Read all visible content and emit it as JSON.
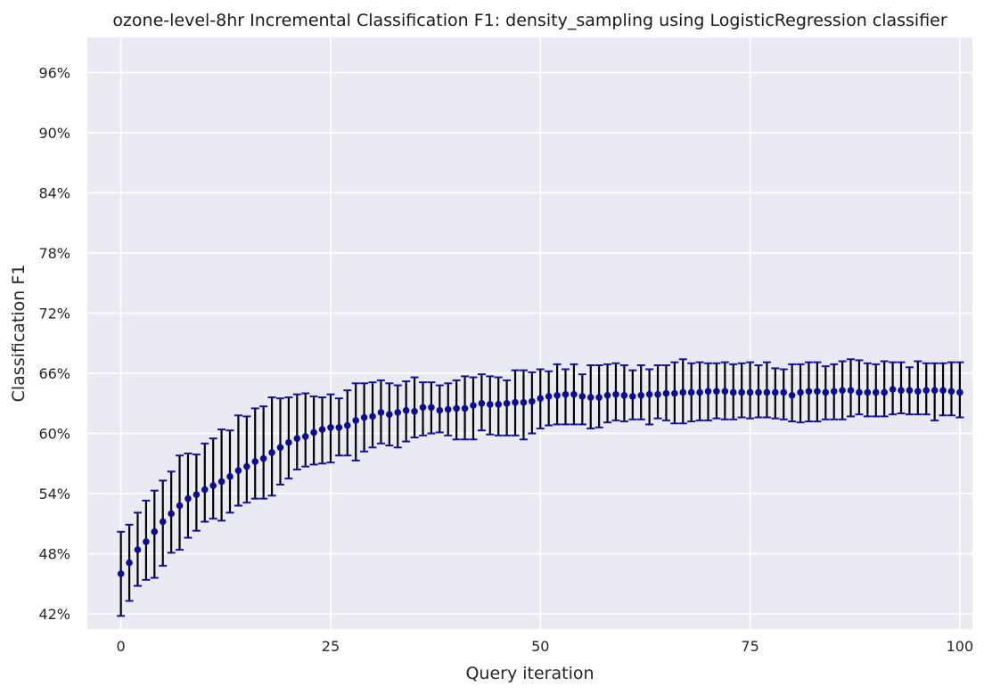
{
  "chart_data": {
    "type": "scatter",
    "title": "ozone-level-8hr Incremental Classification F1: density_sampling using LogisticRegression classifier",
    "xlabel": "Query iteration",
    "ylabel": "Classification F1",
    "xlim": [
      -4,
      101.5
    ],
    "ylim": [
      40.5,
      99.5
    ],
    "xticks": [
      0,
      25,
      50,
      75,
      100
    ],
    "xtick_labels": [
      "0",
      "25",
      "50",
      "75",
      "100"
    ],
    "yticks": [
      42,
      48,
      54,
      60,
      66,
      72,
      78,
      84,
      90,
      96
    ],
    "ytick_labels": [
      "42%",
      "48%",
      "54%",
      "60%",
      "66%",
      "72%",
      "78%",
      "84%",
      "90%",
      "96%"
    ],
    "grid": true,
    "background": "#eaeaf2",
    "point_color": "#0a0a9c",
    "errorbar_color": "#000000",
    "cap_color": "#1010b0",
    "series": [
      {
        "x": [
          0,
          1,
          2,
          3,
          4,
          5,
          6,
          7,
          8,
          9,
          10,
          11,
          12,
          13,
          14,
          15,
          16,
          17,
          18,
          19,
          20,
          21,
          22,
          23,
          24,
          25,
          26,
          27,
          28,
          29,
          30,
          31,
          32,
          33,
          34,
          35,
          36,
          37,
          38,
          39,
          40,
          41,
          42,
          43,
          44,
          45,
          46,
          47,
          48,
          49,
          50,
          51,
          52,
          53,
          54,
          55,
          56,
          57,
          58,
          59,
          60,
          61,
          62,
          63,
          64,
          65,
          66,
          67,
          68,
          69,
          70,
          71,
          72,
          73,
          74,
          75,
          76,
          77,
          78,
          79,
          80,
          81,
          82,
          83,
          84,
          85,
          86,
          87,
          88,
          89,
          90,
          91,
          92,
          93,
          94,
          95,
          96,
          97,
          98,
          99,
          100
        ],
        "y": [
          46.0,
          47.1,
          48.4,
          49.2,
          50.2,
          51.2,
          52.0,
          52.8,
          53.5,
          53.9,
          54.4,
          54.8,
          55.2,
          55.7,
          56.3,
          56.7,
          57.2,
          57.5,
          58.1,
          58.6,
          59.1,
          59.5,
          59.7,
          60.1,
          60.4,
          60.6,
          60.6,
          60.8,
          61.3,
          61.6,
          61.7,
          62.1,
          61.9,
          62.1,
          62.3,
          62.2,
          62.6,
          62.6,
          62.3,
          62.4,
          62.5,
          62.5,
          62.8,
          63.0,
          62.9,
          62.9,
          63.0,
          63.1,
          63.1,
          63.2,
          63.5,
          63.7,
          63.8,
          63.9,
          63.9,
          63.7,
          63.6,
          63.6,
          63.8,
          63.9,
          63.8,
          63.7,
          63.8,
          63.9,
          63.9,
          64.0,
          64.0,
          64.1,
          64.1,
          64.1,
          64.2,
          64.2,
          64.2,
          64.1,
          64.1,
          64.1,
          64.1,
          64.1,
          64.1,
          64.1,
          63.8,
          64.1,
          64.2,
          64.2,
          64.1,
          64.2,
          64.3,
          64.3,
          64.1,
          64.1,
          64.1,
          64.1,
          64.4,
          64.3,
          64.3,
          64.2,
          64.3,
          64.3,
          64.3,
          64.2,
          64.1
        ],
        "yerr_low": [
          41.8,
          43.3,
          44.8,
          45.4,
          45.6,
          46.8,
          48.1,
          48.4,
          49.6,
          50.3,
          51.2,
          51.5,
          51.3,
          52.1,
          52.8,
          53.1,
          53.5,
          53.5,
          53.8,
          54.9,
          55.5,
          56.4,
          56.7,
          56.9,
          57.0,
          57.1,
          57.8,
          57.8,
          57.3,
          58.2,
          58.6,
          59.0,
          58.8,
          58.6,
          59.2,
          59.6,
          59.8,
          60.0,
          60.1,
          59.8,
          59.4,
          59.4,
          59.4,
          60.3,
          59.9,
          59.8,
          59.8,
          59.8,
          59.4,
          60.0,
          60.5,
          60.8,
          60.9,
          60.9,
          60.9,
          60.9,
          60.5,
          60.6,
          61.1,
          61.3,
          61.2,
          61.4,
          61.4,
          60.9,
          61.5,
          61.3,
          61.0,
          61.0,
          61.2,
          61.3,
          61.3,
          61.5,
          61.4,
          61.4,
          61.6,
          61.5,
          61.6,
          61.6,
          61.5,
          61.4,
          61.2,
          61.1,
          61.2,
          61.2,
          61.4,
          61.4,
          61.4,
          61.7,
          61.9,
          61.7,
          61.7,
          61.7,
          61.9,
          62.0,
          61.9,
          61.9,
          61.9,
          61.3,
          61.8,
          61.8,
          61.6
        ],
        "yerr_high": [
          50.2,
          50.9,
          52.1,
          53.3,
          54.3,
          55.3,
          56.2,
          57.8,
          58.0,
          57.9,
          59.0,
          59.5,
          60.4,
          60.3,
          61.8,
          61.7,
          62.5,
          62.7,
          63.6,
          63.5,
          63.6,
          63.9,
          64.0,
          63.7,
          63.6,
          63.9,
          63.5,
          64.3,
          65.0,
          65.0,
          65.1,
          65.3,
          65.0,
          64.8,
          65.2,
          65.6,
          65.1,
          65.1,
          64.8,
          65.0,
          65.3,
          65.7,
          65.6,
          65.9,
          65.7,
          65.6,
          65.3,
          66.3,
          66.3,
          66.1,
          66.4,
          66.2,
          66.9,
          66.4,
          66.9,
          65.9,
          66.8,
          66.8,
          66.9,
          67.0,
          66.8,
          66.3,
          66.8,
          66.4,
          66.8,
          66.8,
          67.1,
          67.4,
          67.0,
          67.1,
          67.0,
          67.0,
          67.1,
          66.9,
          67.0,
          67.1,
          66.8,
          67.1,
          66.5,
          66.4,
          66.9,
          66.9,
          67.1,
          67.1,
          66.7,
          66.9,
          67.2,
          67.4,
          67.3,
          67.0,
          66.9,
          67.2,
          67.1,
          67.1,
          66.6,
          67.2,
          67.0,
          67.0,
          67.0,
          67.1,
          67.1
        ]
      }
    ]
  }
}
